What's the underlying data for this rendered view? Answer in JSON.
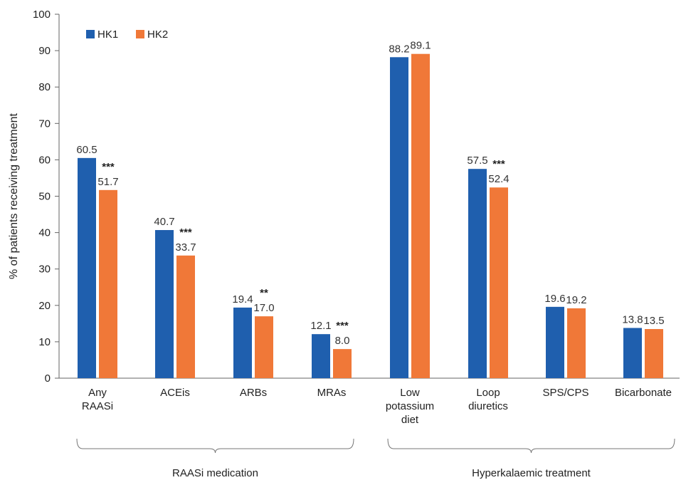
{
  "chart_data": {
    "type": "bar",
    "ylabel": "% of patients receiving treatment",
    "ylim": [
      0,
      100
    ],
    "yticks": [
      0,
      10,
      20,
      30,
      40,
      50,
      60,
      70,
      80,
      90,
      100
    ],
    "grid": false,
    "legend_position": "top-left",
    "categories": [
      [
        "Any",
        "RAASi"
      ],
      [
        "ACEis"
      ],
      [
        "ARBs"
      ],
      [
        "MRAs"
      ],
      [
        "Low",
        "potassium",
        "diet"
      ],
      [
        "Loop",
        "diuretics"
      ],
      [
        "SPS/CPS"
      ],
      [
        "Bicarbonate"
      ]
    ],
    "series": [
      {
        "name": "HK1",
        "color": "#1f5fae",
        "values": [
          60.5,
          40.7,
          19.4,
          12.1,
          88.2,
          57.5,
          19.6,
          13.8
        ],
        "labels": [
          "60.5",
          "40.7",
          "19.4",
          "12.1",
          "88.2",
          "57.5",
          "19.6",
          "13.8"
        ]
      },
      {
        "name": "HK2",
        "color": "#f07838",
        "values": [
          51.7,
          33.7,
          17.0,
          8.0,
          89.1,
          52.4,
          19.2,
          13.5
        ],
        "labels": [
          "51.7",
          "33.7",
          "17.0",
          "8.0",
          "89.1",
          "52.4",
          "19.2",
          "13.5"
        ]
      }
    ],
    "significance": [
      "***",
      "***",
      "**",
      "***",
      "",
      "***",
      "",
      ""
    ],
    "groups": [
      {
        "label": "RAASi medication",
        "start": 0,
        "end": 3
      },
      {
        "label": "Hyperkalaemic treatment",
        "start": 4,
        "end": 7
      }
    ]
  }
}
